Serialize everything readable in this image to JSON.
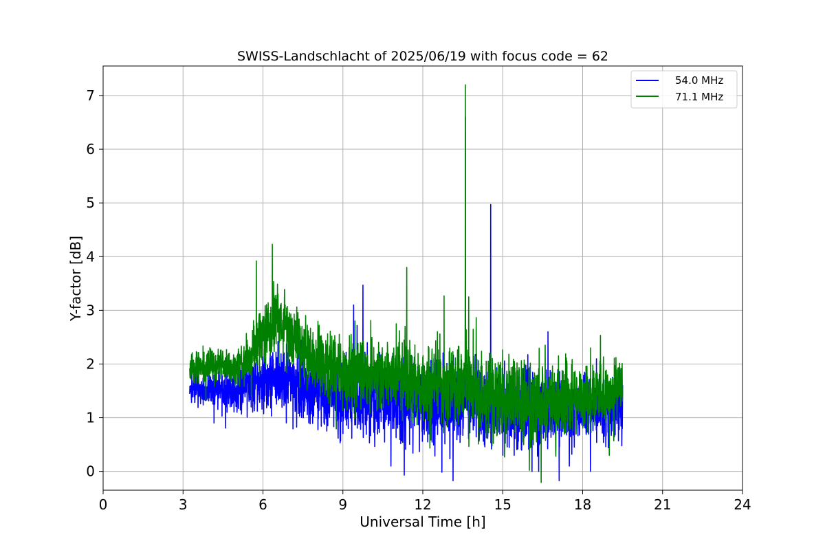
{
  "chart_data": {
    "type": "line",
    "title": "SWISS-Landschlacht of 2025/06/19 with focus code = 62",
    "xlabel": "Universal Time [h]",
    "ylabel": "Y-factor [dB]",
    "xlim": [
      0,
      24
    ],
    "ylim": [
      -0.35,
      7.55
    ],
    "xticks": [
      0,
      3,
      6,
      9,
      12,
      15,
      18,
      21,
      24
    ],
    "yticks": [
      0,
      1,
      2,
      3,
      4,
      5,
      6,
      7
    ],
    "grid": true,
    "legend_position": "top-right",
    "series": [
      {
        "name": "54.0 MHz",
        "color": "#0000ff",
        "x_range": [
          3.25,
          19.5
        ],
        "baseline": [
          [
            3.25,
            1.55
          ],
          [
            4.0,
            1.55
          ],
          [
            5.0,
            1.5
          ],
          [
            6.0,
            1.7
          ],
          [
            6.5,
            1.78
          ],
          [
            7.0,
            1.65
          ],
          [
            8.0,
            1.5
          ],
          [
            9.0,
            1.4
          ],
          [
            10.0,
            1.35
          ],
          [
            11.0,
            1.35
          ],
          [
            12.0,
            1.35
          ],
          [
            13.0,
            1.3
          ],
          [
            14.0,
            1.3
          ],
          [
            15.0,
            1.2
          ],
          [
            16.0,
            1.15
          ],
          [
            17.0,
            1.15
          ],
          [
            18.0,
            1.2
          ],
          [
            19.0,
            1.2
          ],
          [
            19.5,
            1.3
          ]
        ],
        "noise": [
          [
            3.25,
            0.12
          ],
          [
            5.0,
            0.2
          ],
          [
            7.0,
            0.3
          ],
          [
            10.0,
            0.35
          ],
          [
            13.0,
            0.35
          ],
          [
            16.0,
            0.35
          ],
          [
            19.5,
            0.25
          ]
        ],
        "spikes": [
          [
            9.4,
            3.1
          ],
          [
            9.75,
            3.47
          ],
          [
            13.6,
            6.6
          ],
          [
            14.55,
            4.97
          ],
          [
            16.7,
            2.6
          ],
          [
            10.8,
            0.1
          ],
          [
            16.1,
            0.0
          ],
          [
            16.35,
            0.0
          ],
          [
            17.5,
            0.1
          ]
        ]
      },
      {
        "name": "71.1 MHz",
        "color": "#008000",
        "x_range": [
          3.25,
          19.5
        ],
        "baseline": [
          [
            3.25,
            1.95
          ],
          [
            4.5,
            1.95
          ],
          [
            5.0,
            1.9
          ],
          [
            5.5,
            2.1
          ],
          [
            6.0,
            2.55
          ],
          [
            6.5,
            2.85
          ],
          [
            7.0,
            2.6
          ],
          [
            7.5,
            2.3
          ],
          [
            8.0,
            2.05
          ],
          [
            9.0,
            1.85
          ],
          [
            10.0,
            1.8
          ],
          [
            11.0,
            1.75
          ],
          [
            12.0,
            1.7
          ],
          [
            13.0,
            1.65
          ],
          [
            13.6,
            1.75
          ],
          [
            14.0,
            1.5
          ],
          [
            15.0,
            1.4
          ],
          [
            16.0,
            1.35
          ],
          [
            17.0,
            1.3
          ],
          [
            18.0,
            1.35
          ],
          [
            19.0,
            1.5
          ],
          [
            19.5,
            1.6
          ]
        ],
        "noise": [
          [
            3.25,
            0.15
          ],
          [
            5.0,
            0.15
          ],
          [
            6.5,
            0.3
          ],
          [
            8.0,
            0.3
          ],
          [
            10.0,
            0.3
          ],
          [
            13.0,
            0.35
          ],
          [
            16.0,
            0.35
          ],
          [
            19.5,
            0.25
          ]
        ],
        "spikes": [
          [
            5.75,
            3.92
          ],
          [
            6.35,
            4.23
          ],
          [
            9.45,
            2.8
          ],
          [
            11.4,
            3.8
          ],
          [
            11.0,
            2.75
          ],
          [
            12.8,
            3.27
          ],
          [
            12.55,
            2.6
          ],
          [
            13.6,
            7.2
          ],
          [
            13.72,
            3.25
          ],
          [
            14.5,
            2.2
          ],
          [
            18.3,
            2.3
          ],
          [
            16.0,
            0.02
          ],
          [
            19.0,
            0.3
          ]
        ]
      }
    ]
  }
}
